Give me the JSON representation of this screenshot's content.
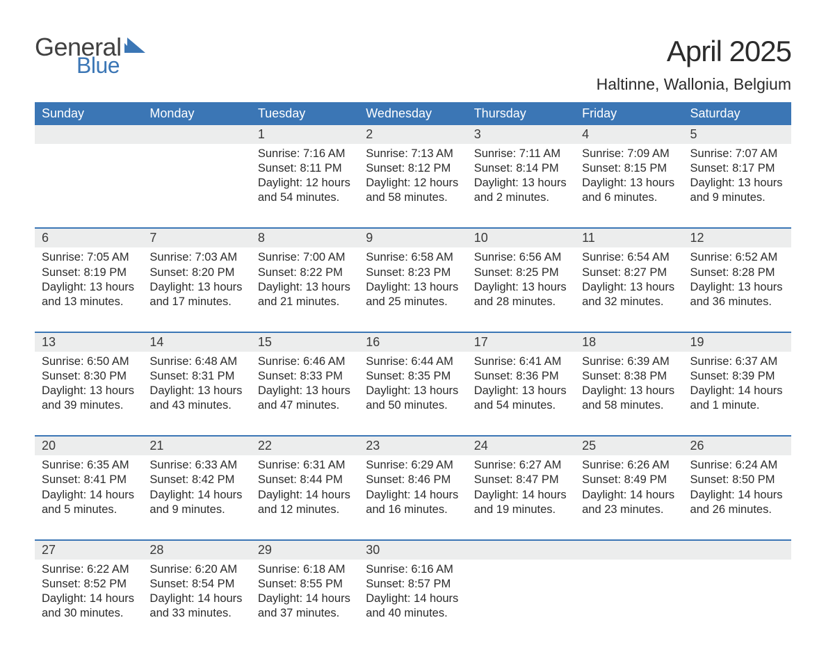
{
  "logo": {
    "text_general": "General",
    "text_blue": "Blue",
    "tri_color": "#3b76b5"
  },
  "title": "April 2025",
  "location": "Haltinne, Wallonia, Belgium",
  "theme": {
    "header_bg": "#3b76b5",
    "header_fg": "#ffffff",
    "daynum_bg": "#eceded",
    "week_border": "#3b76b5",
    "text_color": "#2b2b2b",
    "page_bg": "#ffffff"
  },
  "weekdays": [
    "Sunday",
    "Monday",
    "Tuesday",
    "Wednesday",
    "Thursday",
    "Friday",
    "Saturday"
  ],
  "weeks": [
    {
      "first": true,
      "days": [
        {
          "num": "",
          "sunrise": "",
          "sunset": "",
          "daylight1": "",
          "daylight2": ""
        },
        {
          "num": "",
          "sunrise": "",
          "sunset": "",
          "daylight1": "",
          "daylight2": ""
        },
        {
          "num": "1",
          "sunrise": "Sunrise: 7:16 AM",
          "sunset": "Sunset: 8:11 PM",
          "daylight1": "Daylight: 12 hours",
          "daylight2": "and 54 minutes."
        },
        {
          "num": "2",
          "sunrise": "Sunrise: 7:13 AM",
          "sunset": "Sunset: 8:12 PM",
          "daylight1": "Daylight: 12 hours",
          "daylight2": "and 58 minutes."
        },
        {
          "num": "3",
          "sunrise": "Sunrise: 7:11 AM",
          "sunset": "Sunset: 8:14 PM",
          "daylight1": "Daylight: 13 hours",
          "daylight2": "and 2 minutes."
        },
        {
          "num": "4",
          "sunrise": "Sunrise: 7:09 AM",
          "sunset": "Sunset: 8:15 PM",
          "daylight1": "Daylight: 13 hours",
          "daylight2": "and 6 minutes."
        },
        {
          "num": "5",
          "sunrise": "Sunrise: 7:07 AM",
          "sunset": "Sunset: 8:17 PM",
          "daylight1": "Daylight: 13 hours",
          "daylight2": "and 9 minutes."
        }
      ]
    },
    {
      "days": [
        {
          "num": "6",
          "sunrise": "Sunrise: 7:05 AM",
          "sunset": "Sunset: 8:19 PM",
          "daylight1": "Daylight: 13 hours",
          "daylight2": "and 13 minutes."
        },
        {
          "num": "7",
          "sunrise": "Sunrise: 7:03 AM",
          "sunset": "Sunset: 8:20 PM",
          "daylight1": "Daylight: 13 hours",
          "daylight2": "and 17 minutes."
        },
        {
          "num": "8",
          "sunrise": "Sunrise: 7:00 AM",
          "sunset": "Sunset: 8:22 PM",
          "daylight1": "Daylight: 13 hours",
          "daylight2": "and 21 minutes."
        },
        {
          "num": "9",
          "sunrise": "Sunrise: 6:58 AM",
          "sunset": "Sunset: 8:23 PM",
          "daylight1": "Daylight: 13 hours",
          "daylight2": "and 25 minutes."
        },
        {
          "num": "10",
          "sunrise": "Sunrise: 6:56 AM",
          "sunset": "Sunset: 8:25 PM",
          "daylight1": "Daylight: 13 hours",
          "daylight2": "and 28 minutes."
        },
        {
          "num": "11",
          "sunrise": "Sunrise: 6:54 AM",
          "sunset": "Sunset: 8:27 PM",
          "daylight1": "Daylight: 13 hours",
          "daylight2": "and 32 minutes."
        },
        {
          "num": "12",
          "sunrise": "Sunrise: 6:52 AM",
          "sunset": "Sunset: 8:28 PM",
          "daylight1": "Daylight: 13 hours",
          "daylight2": "and 36 minutes."
        }
      ]
    },
    {
      "days": [
        {
          "num": "13",
          "sunrise": "Sunrise: 6:50 AM",
          "sunset": "Sunset: 8:30 PM",
          "daylight1": "Daylight: 13 hours",
          "daylight2": "and 39 minutes."
        },
        {
          "num": "14",
          "sunrise": "Sunrise: 6:48 AM",
          "sunset": "Sunset: 8:31 PM",
          "daylight1": "Daylight: 13 hours",
          "daylight2": "and 43 minutes."
        },
        {
          "num": "15",
          "sunrise": "Sunrise: 6:46 AM",
          "sunset": "Sunset: 8:33 PM",
          "daylight1": "Daylight: 13 hours",
          "daylight2": "and 47 minutes."
        },
        {
          "num": "16",
          "sunrise": "Sunrise: 6:44 AM",
          "sunset": "Sunset: 8:35 PM",
          "daylight1": "Daylight: 13 hours",
          "daylight2": "and 50 minutes."
        },
        {
          "num": "17",
          "sunrise": "Sunrise: 6:41 AM",
          "sunset": "Sunset: 8:36 PM",
          "daylight1": "Daylight: 13 hours",
          "daylight2": "and 54 minutes."
        },
        {
          "num": "18",
          "sunrise": "Sunrise: 6:39 AM",
          "sunset": "Sunset: 8:38 PM",
          "daylight1": "Daylight: 13 hours",
          "daylight2": "and 58 minutes."
        },
        {
          "num": "19",
          "sunrise": "Sunrise: 6:37 AM",
          "sunset": "Sunset: 8:39 PM",
          "daylight1": "Daylight: 14 hours",
          "daylight2": "and 1 minute."
        }
      ]
    },
    {
      "days": [
        {
          "num": "20",
          "sunrise": "Sunrise: 6:35 AM",
          "sunset": "Sunset: 8:41 PM",
          "daylight1": "Daylight: 14 hours",
          "daylight2": "and 5 minutes."
        },
        {
          "num": "21",
          "sunrise": "Sunrise: 6:33 AM",
          "sunset": "Sunset: 8:42 PM",
          "daylight1": "Daylight: 14 hours",
          "daylight2": "and 9 minutes."
        },
        {
          "num": "22",
          "sunrise": "Sunrise: 6:31 AM",
          "sunset": "Sunset: 8:44 PM",
          "daylight1": "Daylight: 14 hours",
          "daylight2": "and 12 minutes."
        },
        {
          "num": "23",
          "sunrise": "Sunrise: 6:29 AM",
          "sunset": "Sunset: 8:46 PM",
          "daylight1": "Daylight: 14 hours",
          "daylight2": "and 16 minutes."
        },
        {
          "num": "24",
          "sunrise": "Sunrise: 6:27 AM",
          "sunset": "Sunset: 8:47 PM",
          "daylight1": "Daylight: 14 hours",
          "daylight2": "and 19 minutes."
        },
        {
          "num": "25",
          "sunrise": "Sunrise: 6:26 AM",
          "sunset": "Sunset: 8:49 PM",
          "daylight1": "Daylight: 14 hours",
          "daylight2": "and 23 minutes."
        },
        {
          "num": "26",
          "sunrise": "Sunrise: 6:24 AM",
          "sunset": "Sunset: 8:50 PM",
          "daylight1": "Daylight: 14 hours",
          "daylight2": "and 26 minutes."
        }
      ]
    },
    {
      "last": true,
      "days": [
        {
          "num": "27",
          "sunrise": "Sunrise: 6:22 AM",
          "sunset": "Sunset: 8:52 PM",
          "daylight1": "Daylight: 14 hours",
          "daylight2": "and 30 minutes."
        },
        {
          "num": "28",
          "sunrise": "Sunrise: 6:20 AM",
          "sunset": "Sunset: 8:54 PM",
          "daylight1": "Daylight: 14 hours",
          "daylight2": "and 33 minutes."
        },
        {
          "num": "29",
          "sunrise": "Sunrise: 6:18 AM",
          "sunset": "Sunset: 8:55 PM",
          "daylight1": "Daylight: 14 hours",
          "daylight2": "and 37 minutes."
        },
        {
          "num": "30",
          "sunrise": "Sunrise: 6:16 AM",
          "sunset": "Sunset: 8:57 PM",
          "daylight1": "Daylight: 14 hours",
          "daylight2": "and 40 minutes."
        },
        {
          "num": "",
          "sunrise": "",
          "sunset": "",
          "daylight1": "",
          "daylight2": ""
        },
        {
          "num": "",
          "sunrise": "",
          "sunset": "",
          "daylight1": "",
          "daylight2": ""
        },
        {
          "num": "",
          "sunrise": "",
          "sunset": "",
          "daylight1": "",
          "daylight2": ""
        }
      ]
    }
  ]
}
